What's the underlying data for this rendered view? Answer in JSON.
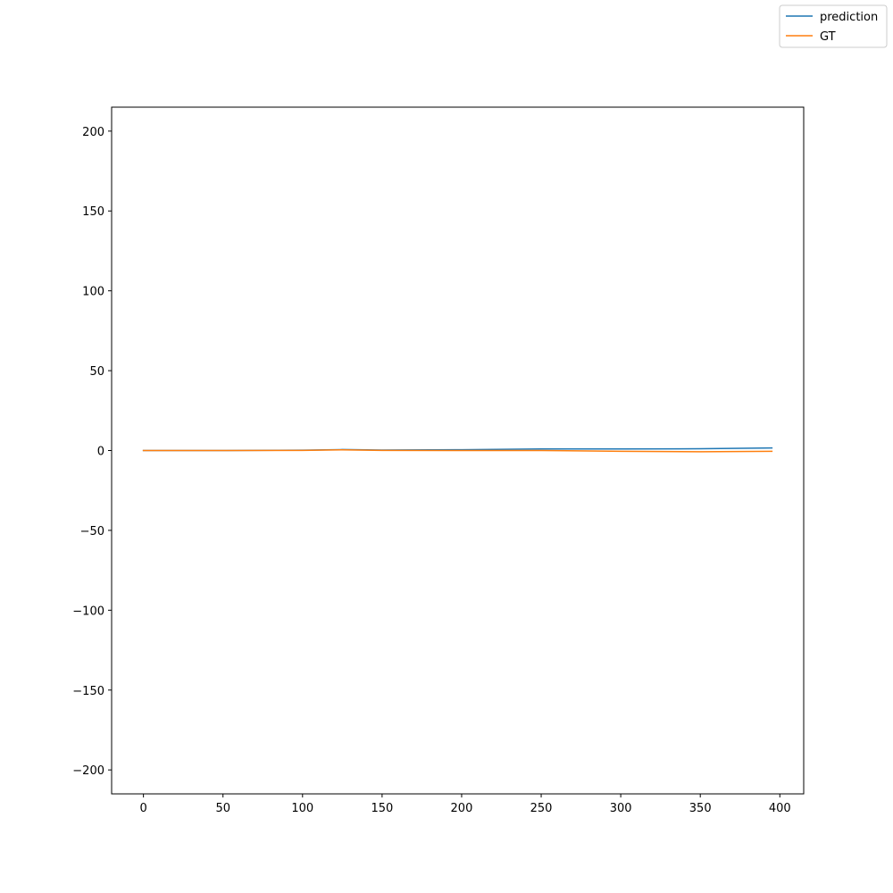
{
  "chart_data": {
    "type": "line",
    "title": "",
    "xlabel": "",
    "ylabel": "",
    "xlim": [
      -20,
      415
    ],
    "ylim": [
      -215,
      215
    ],
    "x_ticks": [
      0,
      50,
      100,
      150,
      200,
      250,
      300,
      350,
      400
    ],
    "x_tick_labels": [
      "0",
      "50",
      "100",
      "150",
      "200",
      "250",
      "300",
      "350",
      "400"
    ],
    "y_ticks": [
      200,
      150,
      100,
      50,
      0,
      -50,
      -100,
      -150,
      -200
    ],
    "y_tick_labels": [
      "200",
      "150",
      "100",
      "50",
      "0",
      "−50",
      "−100",
      "−150",
      "−200"
    ],
    "grid": false,
    "legend_position": "top-right",
    "series": [
      {
        "name": "prediction",
        "color": "#1f77b4",
        "x": [
          0,
          50,
          100,
          125,
          150,
          200,
          250,
          300,
          350,
          395
        ],
        "y": [
          0,
          0,
          0.2,
          0.6,
          0.3,
          0.5,
          1.0,
          1.0,
          1.1,
          1.6
        ]
      },
      {
        "name": "GT",
        "color": "#ff7f0e",
        "x": [
          0,
          50,
          100,
          125,
          150,
          200,
          250,
          300,
          350,
          395
        ],
        "y": [
          0,
          0,
          0.1,
          0.4,
          0.1,
          0,
          0,
          -0.5,
          -0.8,
          -0.5
        ]
      }
    ]
  }
}
